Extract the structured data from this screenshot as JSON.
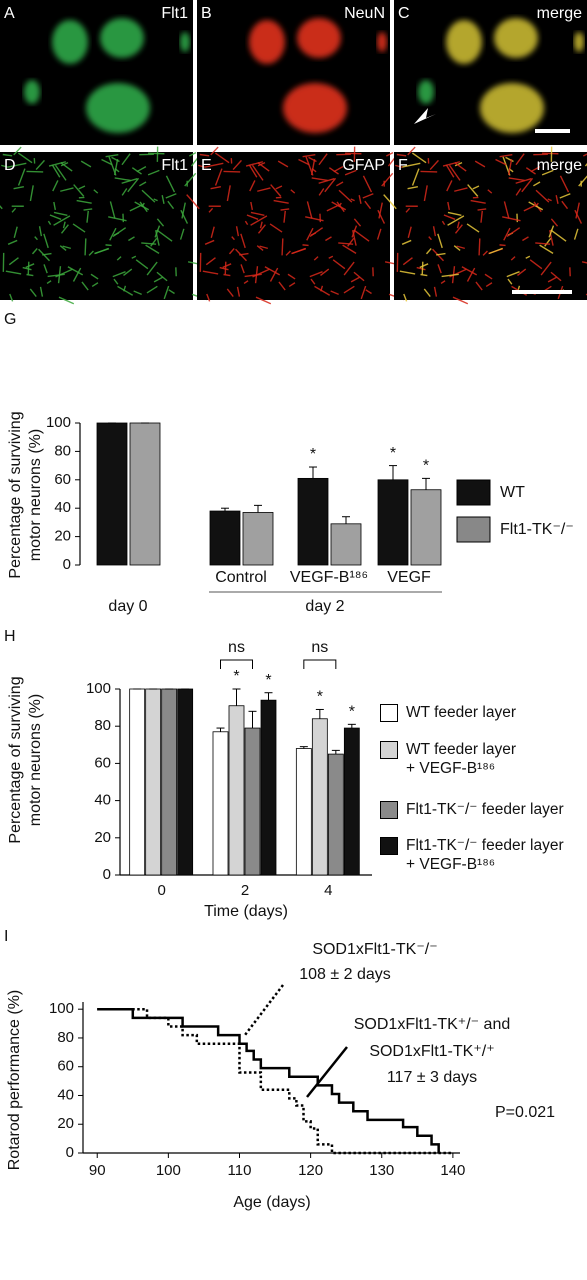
{
  "panels": [
    {
      "letter": "A",
      "label": "Flt1"
    },
    {
      "letter": "B",
      "label": "NeuN"
    },
    {
      "letter": "C",
      "label": "merge"
    },
    {
      "letter": "D",
      "label": "Flt1"
    },
    {
      "letter": "E",
      "label": "GFAP"
    },
    {
      "letter": "F",
      "label": "merge"
    }
  ],
  "chart_data": [
    {
      "type": "bar",
      "panel": "G",
      "ylabel": [
        "Percentage of surviving",
        "motor neurons (%)"
      ],
      "categories": [
        "day 0",
        "Control",
        "VEGF-B¹⁸⁶",
        "VEGF"
      ],
      "group_label": "day 2",
      "ylim": [
        0,
        100
      ],
      "yticks": [
        0,
        20,
        40,
        60,
        80,
        100
      ],
      "legend": "right",
      "series": [
        {
          "name": "WT",
          "color": "#111111",
          "values": [
            100,
            38,
            61,
            60
          ],
          "errors": [
            0,
            2,
            8,
            10
          ],
          "significance": [
            null,
            null,
            "*",
            "*"
          ]
        },
        {
          "name": "Flt1-TK⁻/⁻",
          "color": "#a0a0a0",
          "values": [
            100,
            37,
            29,
            53
          ],
          "errors": [
            0,
            5,
            5,
            8
          ],
          "significance": [
            null,
            null,
            null,
            "*"
          ]
        }
      ]
    },
    {
      "type": "bar",
      "panel": "H",
      "ylabel": [
        "Percentage of surviving",
        "motor neurons (%)"
      ],
      "xlabel": "Time (days)",
      "categories": [
        "0",
        "2",
        "4"
      ],
      "ylim": [
        0,
        100
      ],
      "yticks": [
        0,
        20,
        40,
        60,
        80,
        100
      ],
      "ns_labels": [
        null,
        "ns",
        "ns"
      ],
      "legend": "right",
      "series": [
        {
          "name": "WT feeder layer",
          "color": "#ffffff",
          "values": [
            100,
            77,
            68
          ],
          "errors": [
            0,
            2,
            1
          ],
          "significance": [
            null,
            null,
            null
          ]
        },
        {
          "name": "WT feeder layer + VEGF-B¹⁸⁶",
          "color": "#d4d4d4",
          "values": [
            100,
            91,
            84
          ],
          "errors": [
            0,
            9,
            5
          ],
          "significance": [
            null,
            "*",
            "*"
          ]
        },
        {
          "name": "Flt1-TK⁻/⁻ feeder layer",
          "color": "#8a8a8a",
          "values": [
            100,
            79,
            65
          ],
          "errors": [
            0,
            9,
            2
          ],
          "significance": [
            null,
            null,
            null
          ]
        },
        {
          "name": "Flt1-TK⁻/⁻ feeder layer + VEGF-B¹⁸⁶",
          "color": "#111111",
          "values": [
            100,
            94,
            79
          ],
          "errors": [
            0,
            4,
            2
          ],
          "significance": [
            null,
            "*",
            "*"
          ]
        }
      ]
    },
    {
      "type": "line",
      "step": true,
      "panel": "I",
      "ylabel": "Rotarod  performance (%)",
      "xlabel": "Age (days)",
      "xlim": [
        88,
        141
      ],
      "ylim": [
        0,
        105
      ],
      "xticks": [
        90,
        100,
        110,
        120,
        130,
        140
      ],
      "yticks": [
        0,
        20,
        40,
        60,
        80,
        100
      ],
      "p_value": "P=0.021",
      "series": [
        {
          "annotation": [
            "SOD1xFlt1-TK⁻/⁻",
            "108 ± 2 days"
          ],
          "color": "#000000",
          "dash": "dotted",
          "x": [
            90,
            97,
            97,
            100,
            100,
            102,
            102,
            104,
            104,
            110,
            110,
            113,
            113,
            117,
            117,
            118,
            118,
            119,
            119,
            120,
            120,
            121,
            121,
            123,
            123,
            140
          ],
          "values": [
            100,
            100,
            94,
            94,
            88,
            88,
            82,
            82,
            76,
            76,
            56,
            56,
            44,
            44,
            38,
            38,
            33,
            33,
            22,
            22,
            17,
            17,
            6,
            6,
            0,
            0
          ]
        },
        {
          "annotation": [
            "SOD1xFlt1-TK⁺/⁻ and",
            "SOD1xFlt1-TK⁺/⁺",
            "117 ± 3 days"
          ],
          "color": "#000000",
          "dash": "solid",
          "x": [
            90,
            95,
            95,
            102,
            102,
            107,
            107,
            110,
            110,
            111,
            111,
            112,
            112,
            113,
            113,
            117,
            117,
            121,
            121,
            123,
            123,
            124,
            124,
            126,
            126,
            128,
            128,
            133,
            133,
            135,
            135,
            137,
            137,
            138,
            138
          ],
          "values": [
            100,
            100,
            94,
            94,
            88,
            88,
            82,
            82,
            76,
            76,
            71,
            71,
            65,
            65,
            59,
            59,
            53,
            53,
            47,
            47,
            41,
            41,
            35,
            35,
            29,
            29,
            23,
            23,
            18,
            18,
            12,
            12,
            6,
            6,
            0
          ]
        }
      ]
    }
  ]
}
